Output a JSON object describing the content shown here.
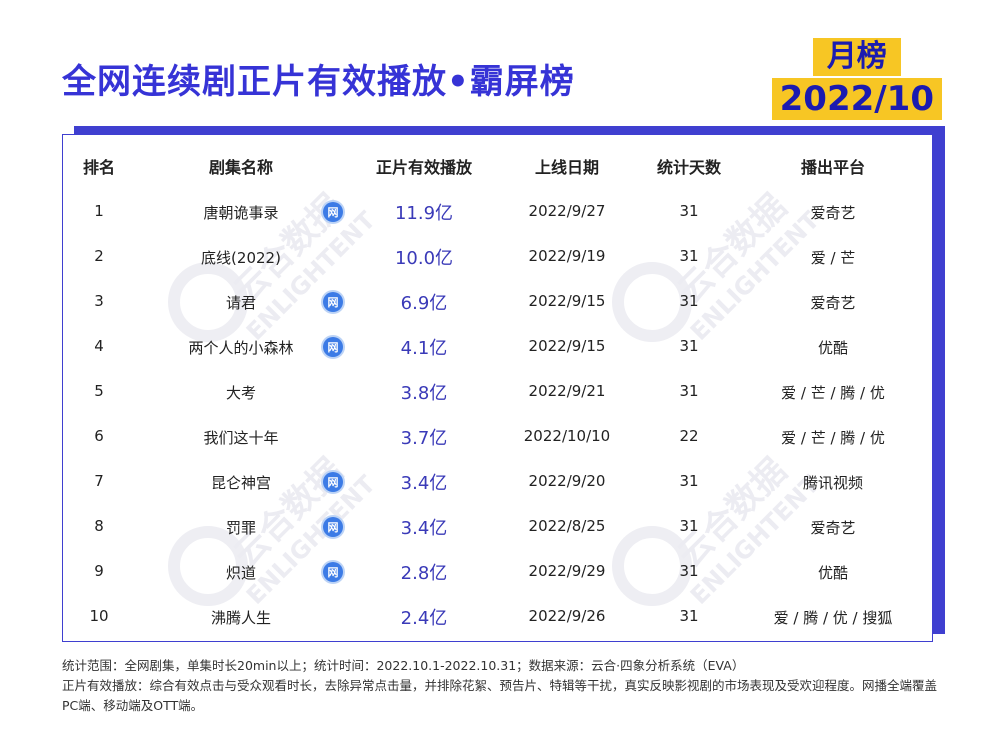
{
  "title": "全网连续剧正片有效播放•霸屏榜",
  "badge": {
    "line1": "月榜",
    "line2": "2022/10"
  },
  "headers": [
    "排名",
    "剧集名称",
    "正片有效播放",
    "上线日期",
    "统计天数",
    "播出平台"
  ],
  "rows": [
    {
      "rank": "1",
      "name": "唐朝诡事录",
      "net": true,
      "views": "11.9亿",
      "date": "2022/9/27",
      "days": "31",
      "platform": "爱奇艺"
    },
    {
      "rank": "2",
      "name": "底线(2022)",
      "net": false,
      "views": "10.0亿",
      "date": "2022/9/19",
      "days": "31",
      "platform": "爱 / 芒"
    },
    {
      "rank": "3",
      "name": "请君",
      "net": true,
      "views": "6.9亿",
      "date": "2022/9/15",
      "days": "31",
      "platform": "爱奇艺"
    },
    {
      "rank": "4",
      "name": "两个人的小森林",
      "net": true,
      "views": "4.1亿",
      "date": "2022/9/15",
      "days": "31",
      "platform": "优酷"
    },
    {
      "rank": "5",
      "name": "大考",
      "net": false,
      "views": "3.8亿",
      "date": "2022/9/21",
      "days": "31",
      "platform": "爱 / 芒 / 腾 / 优"
    },
    {
      "rank": "6",
      "name": "我们这十年",
      "net": false,
      "views": "3.7亿",
      "date": "2022/10/10",
      "days": "22",
      "platform": "爱 / 芒 / 腾 / 优"
    },
    {
      "rank": "7",
      "name": "昆仑神宫",
      "net": true,
      "views": "3.4亿",
      "date": "2022/9/20",
      "days": "31",
      "platform": "腾讯视频"
    },
    {
      "rank": "8",
      "name": "罚罪",
      "net": true,
      "views": "3.4亿",
      "date": "2022/8/25",
      "days": "31",
      "platform": "爱奇艺"
    },
    {
      "rank": "9",
      "name": "炽道",
      "net": true,
      "views": "2.8亿",
      "date": "2022/9/29",
      "days": "31",
      "platform": "优酷"
    },
    {
      "rank": "10",
      "name": "沸腾人生",
      "net": false,
      "views": "2.4亿",
      "date": "2022/9/26",
      "days": "31",
      "platform": "爱 / 腾 / 优 / 搜狐"
    }
  ],
  "net_icon_label": "网",
  "watermark": {
    "text_cn": "云合数据",
    "text_en": "ENLIGHTENT"
  },
  "footer": {
    "line1": "统计范围：全网剧集，单集时长20min以上；统计时间：2022.10.1-2022.10.31；数据来源：云合·四象分析系统（EVA）",
    "line2": "正片有效播放：综合有效点击与受众观看时长，去除异常点击量，并排除花絮、预告片、特辑等干扰，真实反映影视剧的市场表现及受欢迎程度。网播全端覆盖PC端、移动端及OTT端。"
  },
  "colors": {
    "title": "#3633d6",
    "badge_bg": "#f7c624",
    "badge_text": "#1b1bb0",
    "frame": "#3f3fd0",
    "views": "#3a3ab8",
    "net_icon": "#3c7be6"
  }
}
